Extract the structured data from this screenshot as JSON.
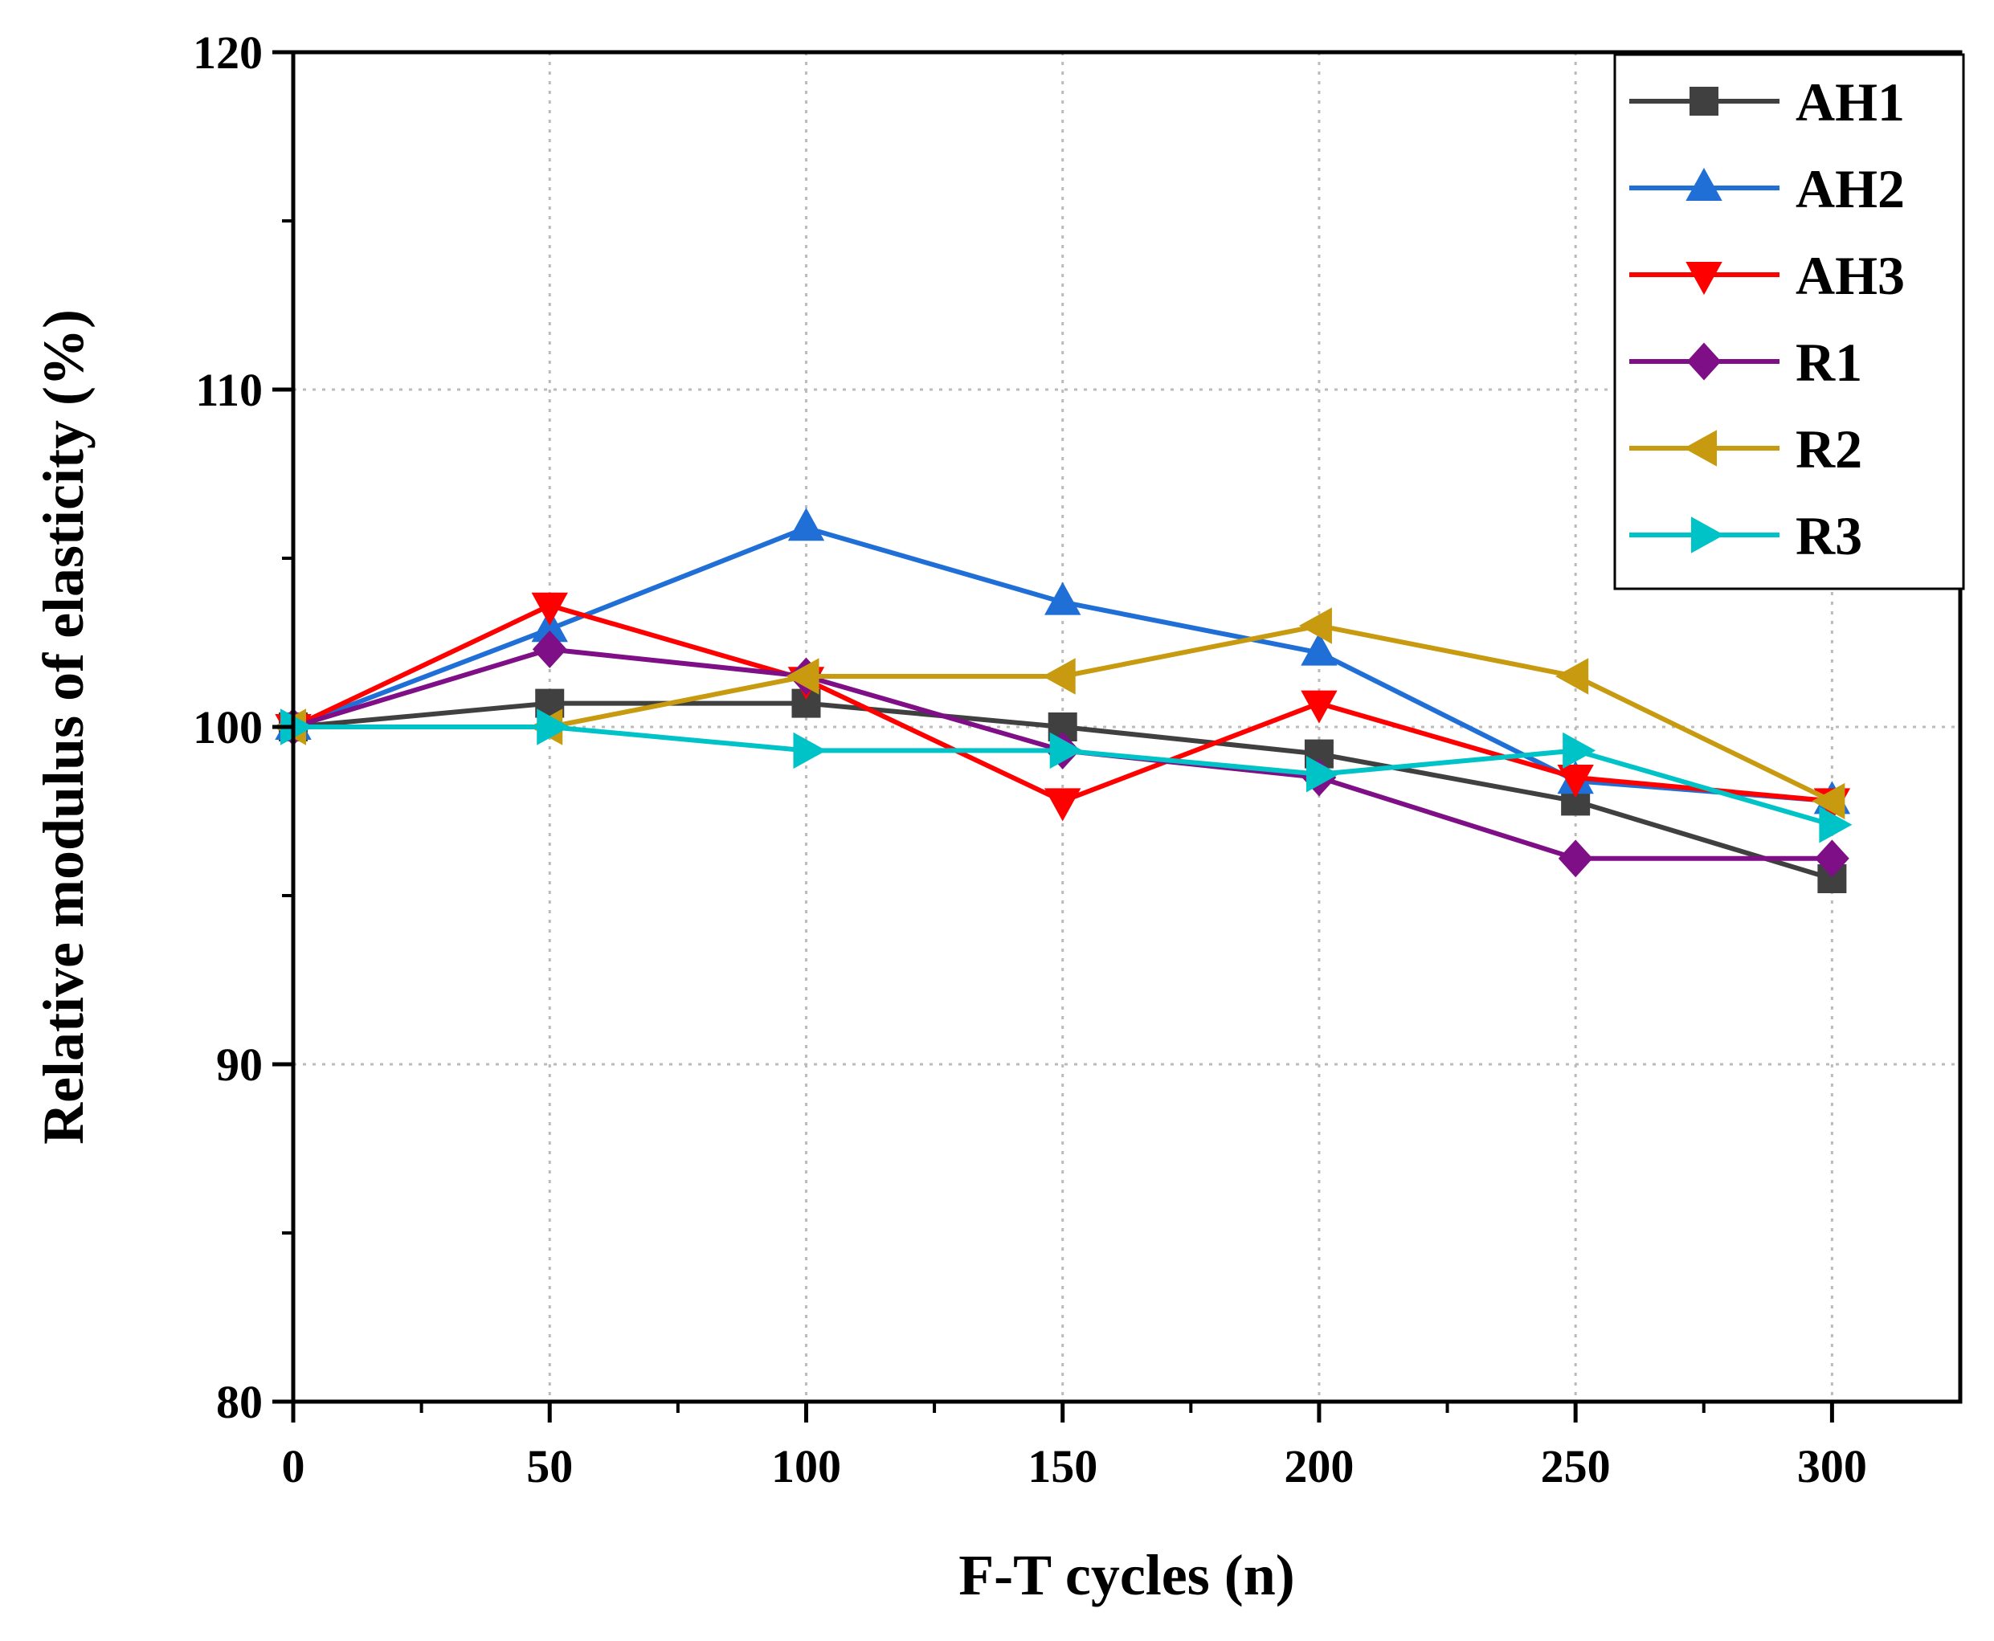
{
  "chart_data": {
    "type": "line",
    "title": "",
    "xlabel": "F-T cycles (n)",
    "ylabel": "Relative modulus of elasticity (%)",
    "x": [
      0,
      50,
      100,
      150,
      200,
      250,
      300
    ],
    "xlim": [
      0,
      325
    ],
    "ylim": [
      80,
      120
    ],
    "xticks": [
      0,
      50,
      100,
      150,
      200,
      250,
      300
    ],
    "yticks": [
      80,
      90,
      100,
      110,
      120
    ],
    "grid": true,
    "legend_position": "top-right",
    "series": [
      {
        "name": "AH1",
        "color": "#404040",
        "marker": "square",
        "values": [
          100.0,
          100.7,
          100.7,
          100.0,
          99.2,
          97.8,
          95.5
        ]
      },
      {
        "name": "AH2",
        "color": "#1f6fd6",
        "marker": "triangle-up",
        "values": [
          100.0,
          102.9,
          105.9,
          103.7,
          102.2,
          98.4,
          97.8
        ]
      },
      {
        "name": "AH3",
        "color": "#ff0000",
        "marker": "triangle-down",
        "values": [
          100.0,
          103.6,
          101.4,
          97.8,
          100.7,
          98.5,
          97.8
        ]
      },
      {
        "name": "R1",
        "color": "#7f0f86",
        "marker": "diamond",
        "values": [
          100.0,
          102.3,
          101.5,
          99.3,
          98.5,
          96.1,
          96.1
        ]
      },
      {
        "name": "R2",
        "color": "#c79a10",
        "marker": "triangle-left",
        "values": [
          100.0,
          100.0,
          101.5,
          101.5,
          103.0,
          101.5,
          97.8
        ]
      },
      {
        "name": "R3",
        "color": "#00c3c8",
        "marker": "triangle-right",
        "values": [
          100.0,
          100.0,
          99.3,
          99.3,
          98.6,
          99.3,
          97.1
        ]
      }
    ]
  }
}
